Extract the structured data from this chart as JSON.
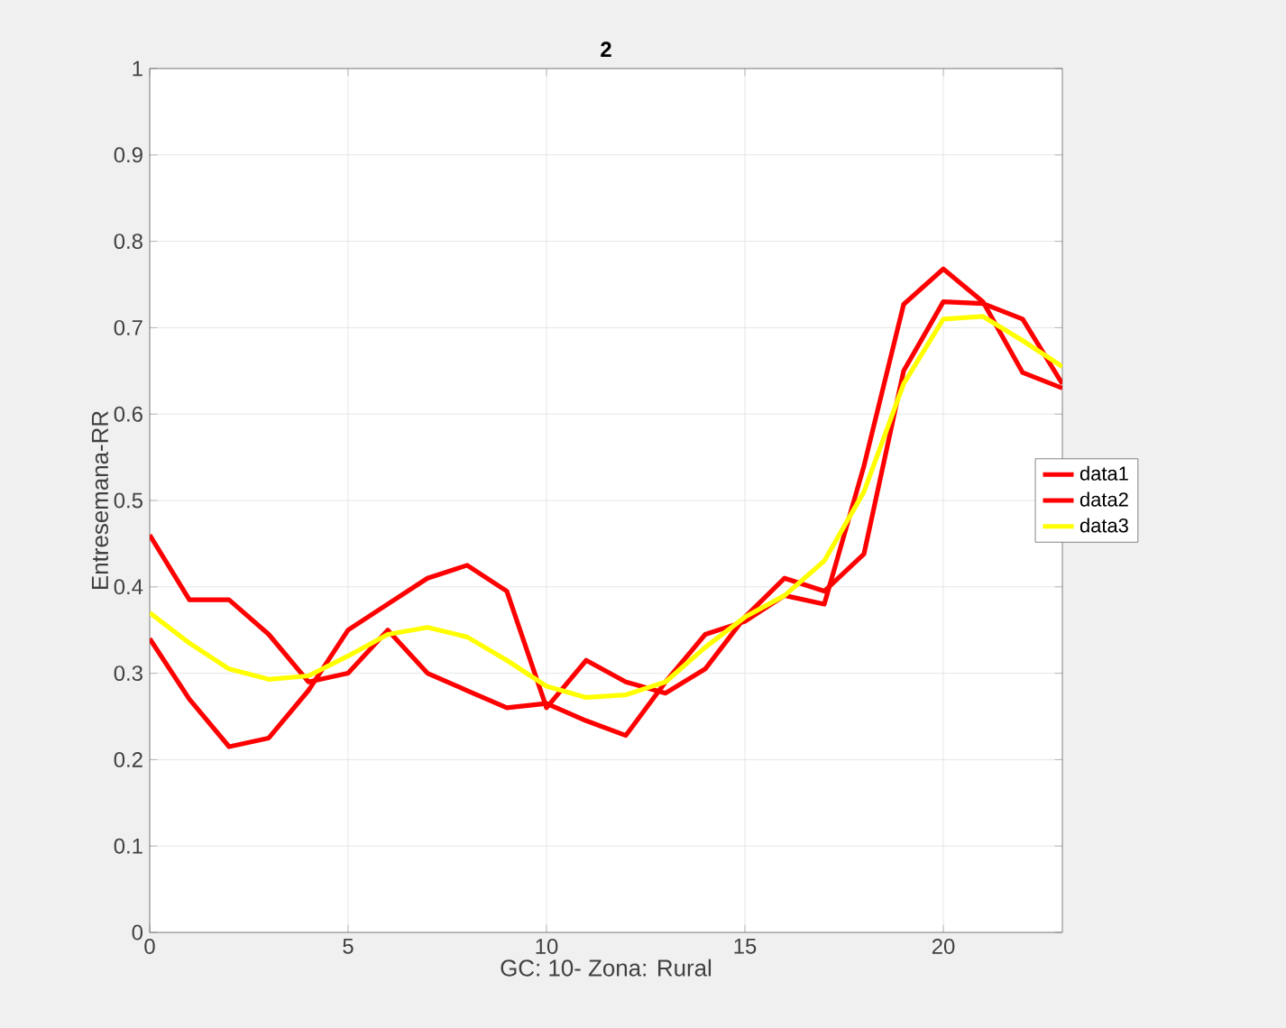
{
  "chart_data": {
    "type": "line",
    "title": "2",
    "xlabel": "GC: 10- Zona: Rural",
    "ylabel": "Entresemana-RR",
    "x": [
      0,
      1,
      2,
      3,
      4,
      5,
      6,
      7,
      8,
      9,
      10,
      11,
      12,
      13,
      14,
      15,
      16,
      17,
      18,
      19,
      20,
      21,
      22,
      23
    ],
    "series": [
      {
        "name": "data1",
        "color": "#ff0000",
        "values": [
          0.46,
          0.385,
          0.385,
          0.345,
          0.29,
          0.3,
          0.35,
          0.3,
          0.28,
          0.26,
          0.265,
          0.245,
          0.228,
          0.29,
          0.345,
          0.36,
          0.39,
          0.38,
          0.54,
          0.727,
          0.768,
          0.73,
          0.648,
          0.63
        ]
      },
      {
        "name": "data2",
        "color": "#ff0000",
        "values": [
          0.34,
          0.27,
          0.215,
          0.225,
          0.28,
          0.35,
          0.38,
          0.41,
          0.425,
          0.395,
          0.26,
          0.315,
          0.29,
          0.277,
          0.305,
          0.365,
          0.41,
          0.395,
          0.438,
          0.65,
          0.73,
          0.728,
          0.71,
          0.635
        ]
      },
      {
        "name": "data3",
        "color": "#ffff00",
        "values": [
          0.37,
          0.335,
          0.305,
          0.293,
          0.297,
          0.32,
          0.345,
          0.353,
          0.342,
          0.315,
          0.285,
          0.272,
          0.275,
          0.29,
          0.33,
          0.365,
          0.39,
          0.43,
          0.51,
          0.635,
          0.71,
          0.713,
          0.685,
          0.655
        ]
      }
    ],
    "xlim": [
      0,
      23
    ],
    "ylim": [
      0,
      1
    ],
    "xticks": [
      0,
      5,
      10,
      15,
      20
    ],
    "yticks": [
      0,
      0.1,
      0.2,
      0.3,
      0.4,
      0.5,
      0.6,
      0.7,
      0.8,
      0.9,
      1
    ],
    "grid": true,
    "legend": "right",
    "marker": "none",
    "line_style": "solid"
  }
}
